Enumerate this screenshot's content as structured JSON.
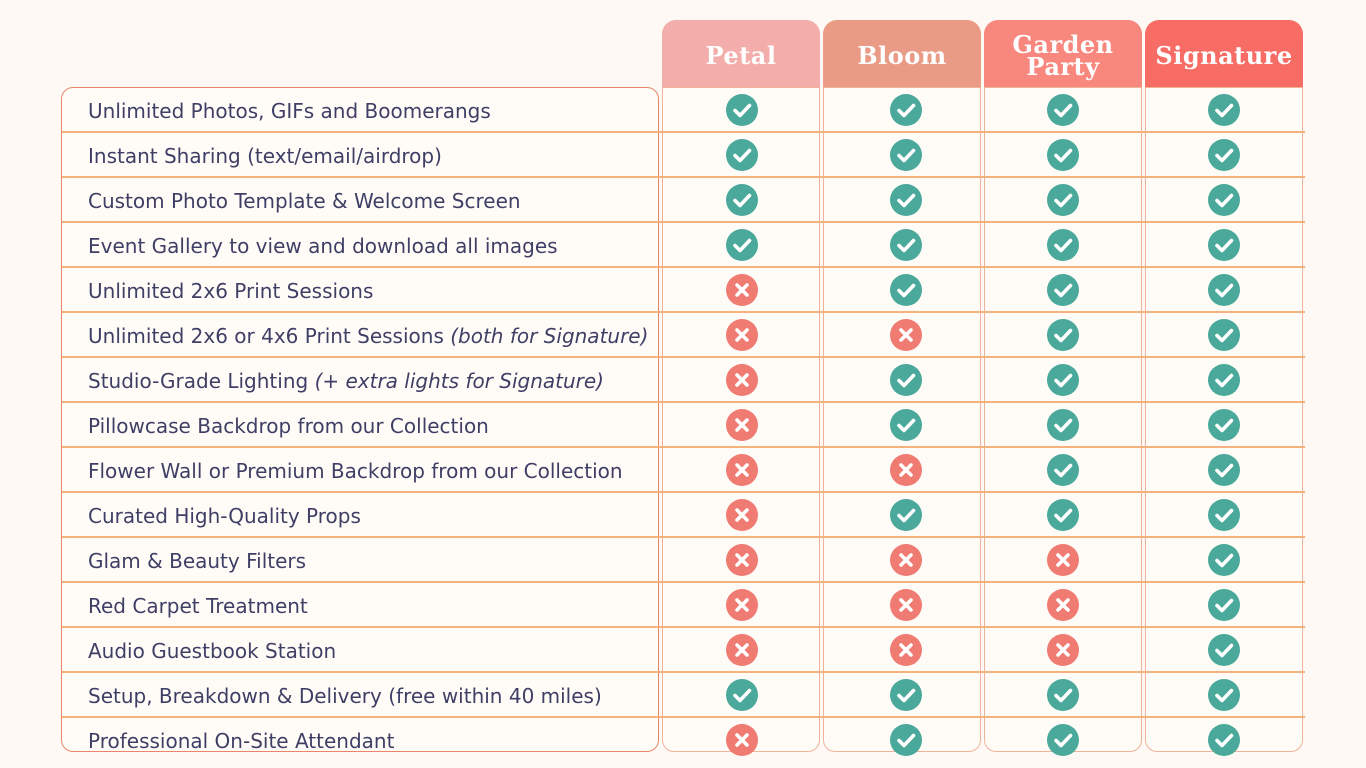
{
  "colors": {
    "check": "#4aa99a",
    "cross": "#f07b72",
    "petal": "#f3adaa",
    "bloom": "#ea9b86",
    "garden_party": "#f8887e",
    "signature": "#f86c66",
    "text": "#3f3f66",
    "row_line": "#f5b27c"
  },
  "plans": [
    {
      "name": "Petal",
      "color": "#f3adaa"
    },
    {
      "name": "Bloom",
      "color": "#ea9b86"
    },
    {
      "name": "Garden\nParty",
      "color": "#f8887e"
    },
    {
      "name": "Signature",
      "color": "#f86c66"
    }
  ],
  "features": [
    {
      "label": "Unlimited Photos, GIFs and Boomerangs",
      "note": "",
      "included": [
        true,
        true,
        true,
        true
      ]
    },
    {
      "label": "Instant Sharing (text/email/airdrop)",
      "note": "",
      "included": [
        true,
        true,
        true,
        true
      ]
    },
    {
      "label": "Custom Photo Template & Welcome Screen",
      "note": "",
      "included": [
        true,
        true,
        true,
        true
      ]
    },
    {
      "label": "Event Gallery to view and download all images",
      "note": "",
      "included": [
        true,
        true,
        true,
        true
      ]
    },
    {
      "label": "Unlimited 2x6 Print Sessions",
      "note": "",
      "included": [
        false,
        true,
        true,
        true
      ]
    },
    {
      "label": "Unlimited 2x6 or 4x6 Print Sessions ",
      "note": "(both for Signature)",
      "included": [
        false,
        false,
        true,
        true
      ]
    },
    {
      "label": "Studio-Grade Lighting ",
      "note": "(+ extra lights for Signature)",
      "included": [
        false,
        true,
        true,
        true
      ]
    },
    {
      "label": "Pillowcase Backdrop from our Collection",
      "note": "",
      "included": [
        false,
        true,
        true,
        true
      ]
    },
    {
      "label": "Flower Wall or Premium Backdrop from our Collection",
      "note": "",
      "included": [
        false,
        false,
        true,
        true
      ]
    },
    {
      "label": "Curated High-Quality Props",
      "note": "",
      "included": [
        false,
        true,
        true,
        true
      ]
    },
    {
      "label": "Glam & Beauty Filters",
      "note": "",
      "included": [
        false,
        false,
        false,
        true
      ]
    },
    {
      "label": "Red Carpet Treatment",
      "note": "",
      "included": [
        false,
        false,
        false,
        true
      ]
    },
    {
      "label": "Audio Guestbook Station",
      "note": "",
      "included": [
        false,
        false,
        false,
        true
      ]
    },
    {
      "label": "Setup, Breakdown & Delivery (free within 40 miles)",
      "note": "",
      "included": [
        true,
        true,
        true,
        true
      ]
    },
    {
      "label": "Professional On-Site Attendant",
      "note": "",
      "included": [
        false,
        true,
        true,
        true
      ]
    }
  ],
  "icons": {
    "check": "check-circle-icon",
    "cross": "x-circle-icon"
  }
}
